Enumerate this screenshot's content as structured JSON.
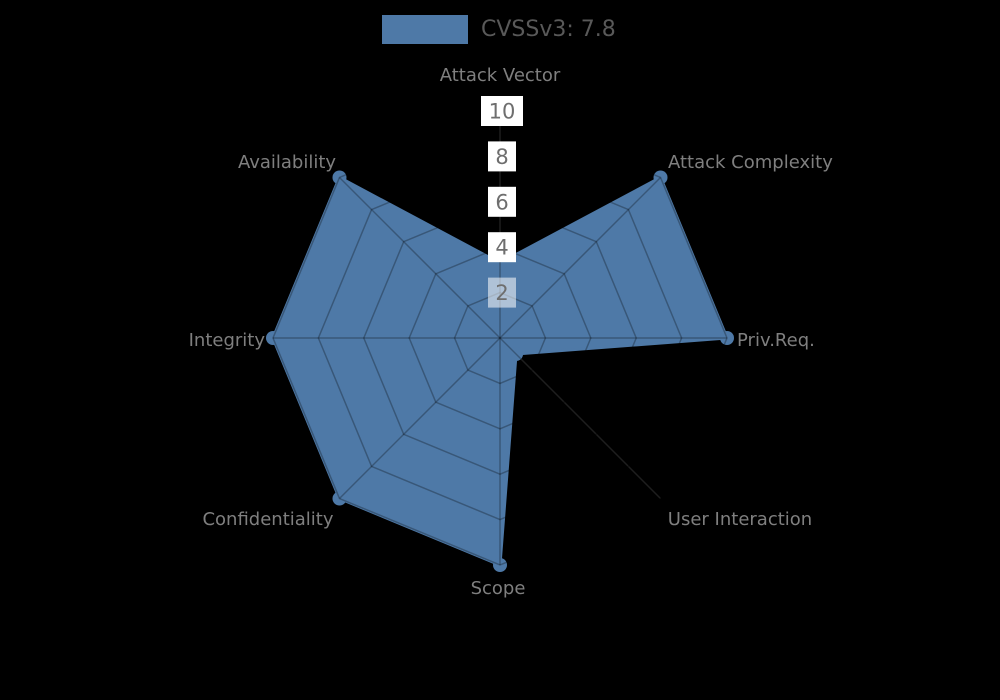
{
  "chart_data": {
    "type": "radar",
    "legend": {
      "label": "CVSSv3: 7.8"
    },
    "axes": [
      {
        "label": "Attack Vector",
        "value": 3.3
      },
      {
        "label": "Attack Complexity",
        "value": 10
      },
      {
        "label": "Priv.Req.",
        "value": 10
      },
      {
        "label": "User Interaction",
        "value": 1
      },
      {
        "label": "Scope",
        "value": 10
      },
      {
        "label": "Confidentiality",
        "value": 10
      },
      {
        "label": "Integrity",
        "value": 10
      },
      {
        "label": "Availability",
        "value": 10
      }
    ],
    "ticks": [
      2,
      4,
      6,
      8,
      10
    ],
    "range": [
      0,
      10
    ],
    "grid": "spider-web-polygonal",
    "legend_position": "top-center",
    "colors": {
      "series": "#4e79a7",
      "background": "#000000",
      "axis_label": "#7f7f7f",
      "tick_text": "#6e6e6e",
      "tick_box": "#ffffff",
      "legend_text": "#595959",
      "grid_overlay": "rgba(0,0,0,0.28)",
      "spoke_faint": "#2a2a2a"
    }
  }
}
